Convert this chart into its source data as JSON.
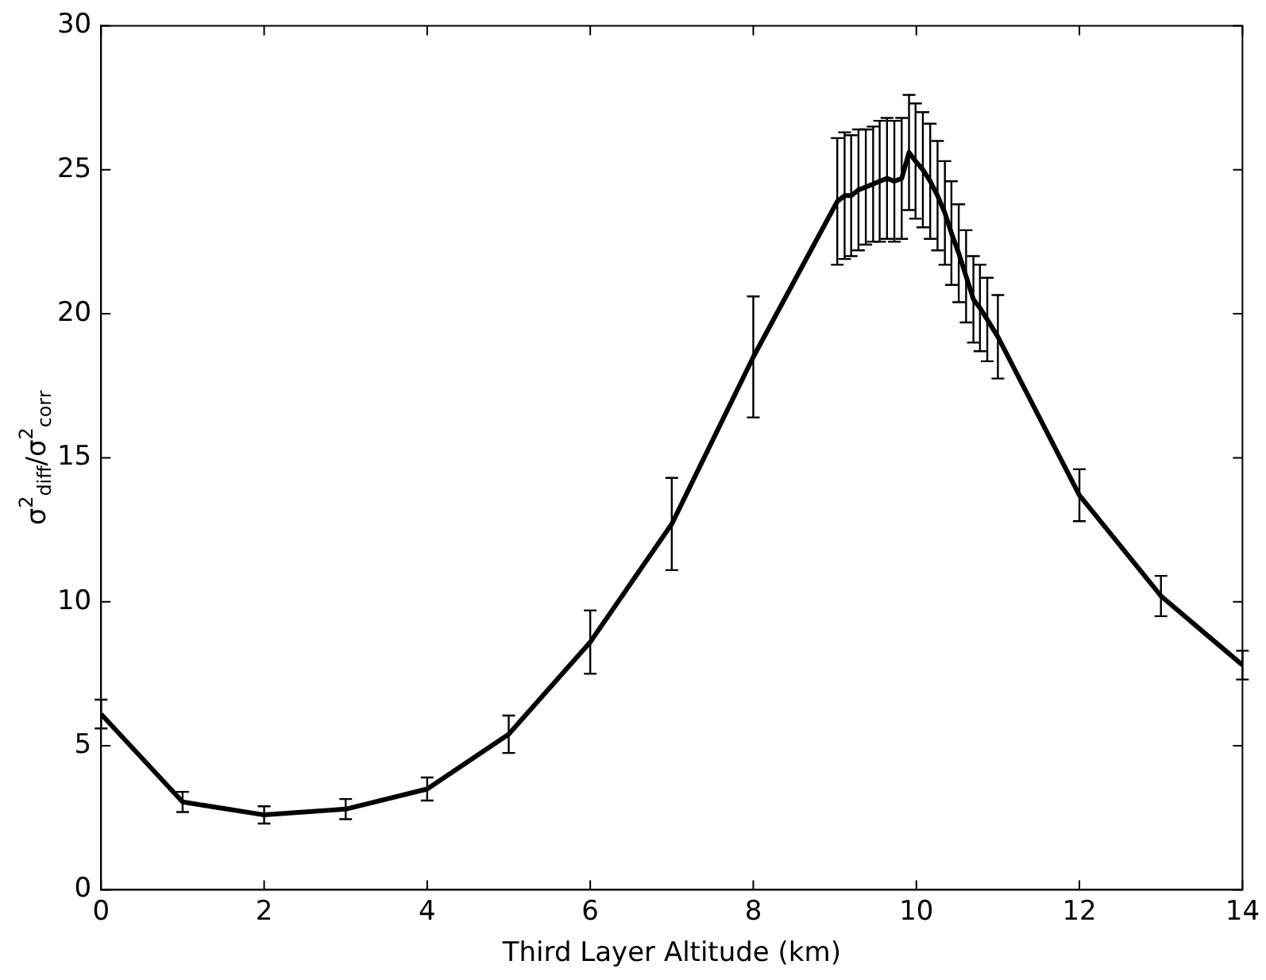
{
  "chart_data": {
    "type": "line",
    "xlabel": "Third Layer Altitude (km)",
    "ylabel": "σ$^{2}$$_{diff}$/σ$^{2}$$_{corr}$",
    "x": [
      0,
      1,
      2,
      3,
      4,
      5,
      6,
      7,
      8,
      9.03,
      9.12,
      9.2,
      9.29,
      9.38,
      9.47,
      9.55,
      9.64,
      9.73,
      9.82,
      9.91,
      9.99,
      10.08,
      10.17,
      10.26,
      10.35,
      10.43,
      10.52,
      10.61,
      10.7,
      10.78,
      10.87,
      11,
      12,
      13,
      14
    ],
    "series": [
      {
        "color": "#000000",
        "values": [
          6.1,
          3.05,
          2.6,
          2.8,
          3.5,
          5.4,
          8.6,
          12.7,
          18.5,
          23.9,
          24.1,
          24.1,
          24.3,
          24.4,
          24.5,
          24.6,
          24.7,
          24.6,
          24.7,
          25.6,
          25.3,
          25.0,
          24.6,
          24.1,
          23.5,
          22.8,
          22.1,
          21.3,
          20.5,
          20.2,
          19.8,
          19.2,
          13.7,
          10.2,
          7.8
        ],
        "errors": [
          0.5,
          0.35,
          0.3,
          0.35,
          0.4,
          0.65,
          1.1,
          1.6,
          2.1,
          2.2,
          2.2,
          2.1,
          2.1,
          2.0,
          2.0,
          2.1,
          2.1,
          2.1,
          2.1,
          2.0,
          2.0,
          2.0,
          2.0,
          1.9,
          1.8,
          1.8,
          1.7,
          1.6,
          1.5,
          1.5,
          1.45,
          1.45,
          0.9,
          0.7,
          0.5
        ]
      }
    ],
    "xlim": [
      0,
      14
    ],
    "xticks": [
      0,
      2,
      4,
      6,
      8,
      10,
      12,
      14
    ],
    "ylim": [
      0,
      30
    ],
    "yticks": [
      0,
      5,
      10,
      15,
      20,
      25,
      30
    ],
    "grid": false,
    "legend": false,
    "marker": "none",
    "line_style": "solid"
  }
}
